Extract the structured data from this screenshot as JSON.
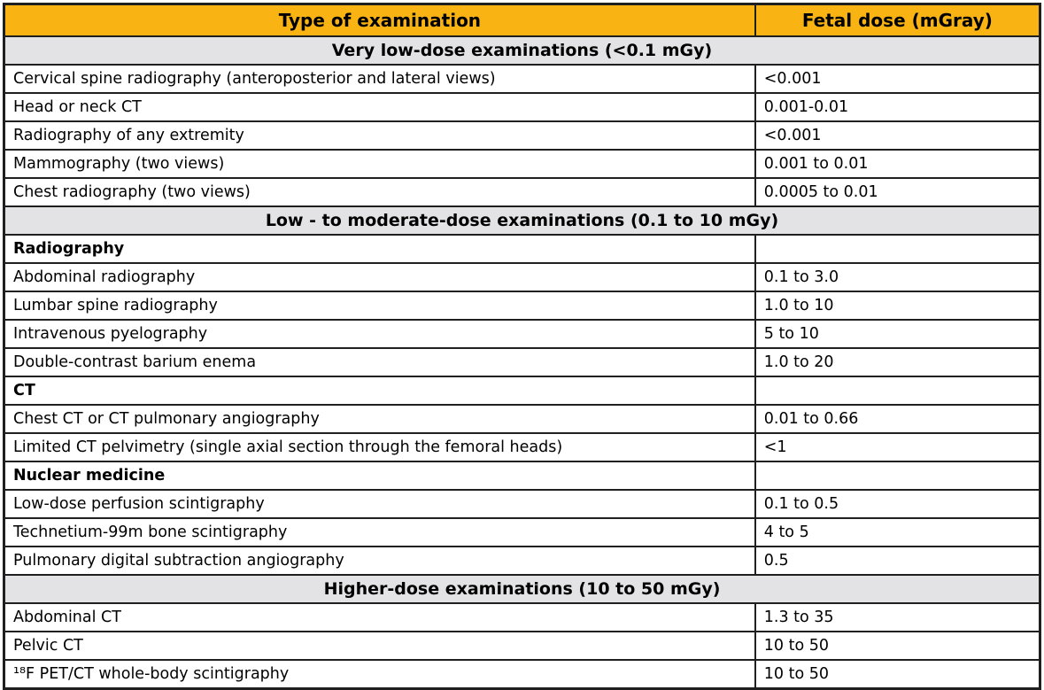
{
  "colors": {
    "header_bg": "#f9b313",
    "section_bg": "#e3e3e5",
    "row_bg": "#ffffff",
    "border": "#1f1f1f",
    "text": "#000000"
  },
  "table": {
    "columns": [
      "Type of examination",
      "Fetal dose (mGray)"
    ],
    "rows": [
      {
        "type": "section",
        "label": "Very low-dose examinations (<0.1 mGy)"
      },
      {
        "type": "data",
        "exam": "Cervical spine radiography (anteroposterior and lateral views)",
        "dose": "<0.001"
      },
      {
        "type": "data",
        "exam": "Head or neck CT",
        "dose": "0.001-0.01"
      },
      {
        "type": "data",
        "exam": "Radiography of any extremity",
        "dose": "<0.001"
      },
      {
        "type": "data",
        "exam": "Mammography (two views)",
        "dose": "0.001 to 0.01"
      },
      {
        "type": "data",
        "exam": "Chest radiography (two views)",
        "dose": "0.0005 to 0.01"
      },
      {
        "type": "section",
        "label": "Low - to moderate-dose examinations (0.1 to 10 mGy)"
      },
      {
        "type": "subsection",
        "exam": "Radiography",
        "dose": ""
      },
      {
        "type": "data",
        "exam": "Abdominal radiography",
        "dose": "0.1 to 3.0"
      },
      {
        "type": "data",
        "exam": "Lumbar spine radiography",
        "dose": "1.0 to 10"
      },
      {
        "type": "data",
        "exam": "Intravenous pyelography",
        "dose": "5 to 10"
      },
      {
        "type": "data",
        "exam": "Double-contrast barium enema",
        "dose": "1.0 to 20"
      },
      {
        "type": "subsection",
        "exam": "CT",
        "dose": ""
      },
      {
        "type": "data",
        "exam": "Chest CT or CT pulmonary angiography",
        "dose": "0.01 to 0.66"
      },
      {
        "type": "data",
        "exam": "Limited CT pelvimetry (single axial section through the femoral heads)",
        "dose": "<1"
      },
      {
        "type": "subsection",
        "exam": "Nuclear medicine",
        "dose": ""
      },
      {
        "type": "data",
        "exam": "Low-dose perfusion scintigraphy",
        "dose": "0.1 to 0.5"
      },
      {
        "type": "data",
        "exam": "Technetium-99m bone scintigraphy",
        "dose": "4 to 5"
      },
      {
        "type": "data",
        "exam": "Pulmonary digital subtraction angiography",
        "dose": "0.5"
      },
      {
        "type": "section",
        "label": "Higher-dose examinations (10 to 50 mGy)"
      },
      {
        "type": "data",
        "exam": "Abdominal CT",
        "dose": "1.3 to 35"
      },
      {
        "type": "data",
        "exam": "Pelvic CT",
        "dose": "10 to 50"
      },
      {
        "type": "data",
        "exam": "¹⁸F PET/CT whole-body scintigraphy",
        "dose": "10 to 50"
      }
    ]
  }
}
